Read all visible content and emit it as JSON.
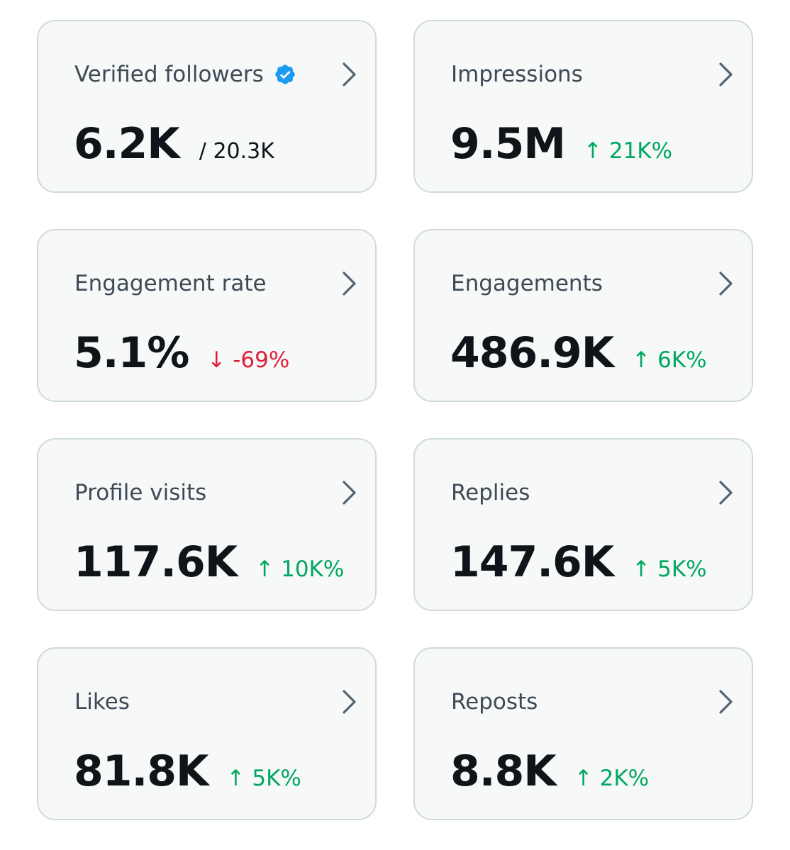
{
  "colors": {
    "card_bg": "#f7f9f9",
    "card_border": "#cfd9de",
    "label": "#3d4a55",
    "value": "#0f1419",
    "up": "#00a760",
    "down": "#e0203a",
    "verified_badge": "#1d9bf0",
    "chevron": "#536471"
  },
  "cards": [
    {
      "label": "Verified followers",
      "value": "6.2K",
      "secondary": "/ 20.3K",
      "badge_icon": "verified-badge-icon",
      "chevron_icon": "chevron-right-icon"
    },
    {
      "label": "Impressions",
      "value": "9.5M",
      "change": "↑ 21K%",
      "direction": "up",
      "chevron_icon": "chevron-right-icon"
    },
    {
      "label": "Engagement rate",
      "value": "5.1%",
      "change": "↓ -69%",
      "direction": "down",
      "chevron_icon": "chevron-right-icon"
    },
    {
      "label": "Engagements",
      "value": "486.9K",
      "change": "↑ 6K%",
      "direction": "up",
      "chevron_icon": "chevron-right-icon"
    },
    {
      "label": "Profile visits",
      "value": "117.6K",
      "change": "↑ 10K%",
      "direction": "up",
      "chevron_icon": "chevron-right-icon"
    },
    {
      "label": "Replies",
      "value": "147.6K",
      "change": "↑ 5K%",
      "direction": "up",
      "chevron_icon": "chevron-right-icon"
    },
    {
      "label": "Likes",
      "value": "81.8K",
      "change": "↑ 5K%",
      "direction": "up",
      "chevron_icon": "chevron-right-icon"
    },
    {
      "label": "Reposts",
      "value": "8.8K",
      "change": "↑ 2K%",
      "direction": "up",
      "chevron_icon": "chevron-right-icon"
    }
  ]
}
